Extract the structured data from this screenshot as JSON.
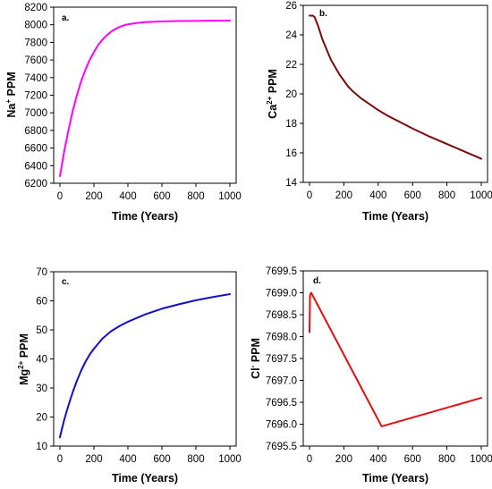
{
  "chart_data": [
    {
      "type": "line",
      "panel_label": "a.",
      "xlabel": "Time (Years)",
      "ylabel": {
        "base": "Na",
        "sup": "+",
        "rest": " PPM"
      },
      "xlim": [
        0,
        1000
      ],
      "ylim": [
        6200,
        8200
      ],
      "xticks": [
        0,
        200,
        400,
        600,
        800,
        1000
      ],
      "yticks": [
        6200,
        6400,
        6600,
        6800,
        7000,
        7200,
        7400,
        7600,
        7800,
        8000,
        8200
      ],
      "grid": false,
      "color": "#ff00ff",
      "series": [
        {
          "x": [
            0,
            25,
            50,
            75,
            100,
            125,
            150,
            175,
            200,
            225,
            250,
            275,
            300,
            325,
            350,
            375,
            400,
            450,
            500,
            550,
            600,
            650,
            700,
            800,
            900,
            1000
          ],
          "y": [
            6280,
            6560,
            6800,
            7020,
            7200,
            7360,
            7490,
            7600,
            7690,
            7770,
            7830,
            7880,
            7920,
            7950,
            7975,
            7993,
            8005,
            8020,
            8030,
            8034,
            8037,
            8040,
            8042,
            8044,
            8046,
            8048
          ]
        }
      ]
    },
    {
      "type": "line",
      "panel_label": "b.",
      "xlabel": "Time (Years)",
      "ylabel": {
        "base": "Ca",
        "sup": "2+",
        "rest": " PPM"
      },
      "xlim": [
        0,
        1000
      ],
      "ylim": [
        14,
        26
      ],
      "xticks": [
        0,
        200,
        400,
        600,
        800,
        1000
      ],
      "yticks": [
        14,
        16,
        18,
        20,
        22,
        24,
        26
      ],
      "grid": false,
      "color": "#7a0a0a",
      "series": [
        {
          "x": [
            0,
            10,
            20,
            30,
            50,
            75,
            100,
            125,
            150,
            175,
            200,
            225,
            250,
            300,
            350,
            400,
            450,
            500,
            600,
            700,
            800,
            900,
            1000
          ],
          "y": [
            25.3,
            25.3,
            25.3,
            25.2,
            24.6,
            23.7,
            23.0,
            22.3,
            21.8,
            21.3,
            20.9,
            20.5,
            20.2,
            19.7,
            19.3,
            18.9,
            18.55,
            18.25,
            17.65,
            17.1,
            16.6,
            16.1,
            15.6
          ]
        }
      ]
    },
    {
      "type": "line",
      "panel_label": "c.",
      "xlabel": "Time (Years)",
      "ylabel": {
        "base": "Mg",
        "sup": "2+",
        "rest": " PPM"
      },
      "xlim": [
        0,
        1000
      ],
      "ylim": [
        10,
        70
      ],
      "xticks": [
        0,
        200,
        400,
        600,
        800,
        1000
      ],
      "yticks": [
        10,
        20,
        30,
        40,
        50,
        60,
        70
      ],
      "grid": false,
      "color": "#1010c8",
      "series": [
        {
          "x": [
            0,
            10,
            25,
            50,
            75,
            100,
            125,
            150,
            175,
            200,
            250,
            300,
            350,
            400,
            500,
            600,
            700,
            800,
            900,
            1000
          ],
          "y": [
            13,
            15.5,
            19,
            24,
            28.5,
            32.5,
            36,
            39,
            41.5,
            43.5,
            47,
            49.5,
            51.3,
            52.8,
            55.3,
            57.3,
            58.8,
            60.2,
            61.3,
            62.3
          ]
        }
      ]
    },
    {
      "type": "line",
      "panel_label": "d.",
      "xlabel": "Time (Years)",
      "ylabel": {
        "base": "Cl",
        "sup": "-",
        "rest": " PPM"
      },
      "xlim": [
        0,
        1000
      ],
      "ylim": [
        7695.5,
        7699.5
      ],
      "xticks": [
        0,
        200,
        400,
        600,
        800,
        1000
      ],
      "yticks": [
        7695.5,
        7696.0,
        7696.5,
        7697.0,
        7697.5,
        7698.0,
        7698.5,
        7699.0,
        7699.5
      ],
      "ytick_labels": [
        "7695.5",
        "7696.0",
        "7696.5",
        "7697.0",
        "7697.5",
        "7698.0",
        "7698.5",
        "7699.0",
        "7699.5"
      ],
      "grid": false,
      "color": "#e01010",
      "series": [
        {
          "x": [
            0,
            3,
            10,
            420,
            1000
          ],
          "y": [
            7698.1,
            7698.95,
            7699.0,
            7695.95,
            7696.6
          ]
        }
      ]
    }
  ]
}
